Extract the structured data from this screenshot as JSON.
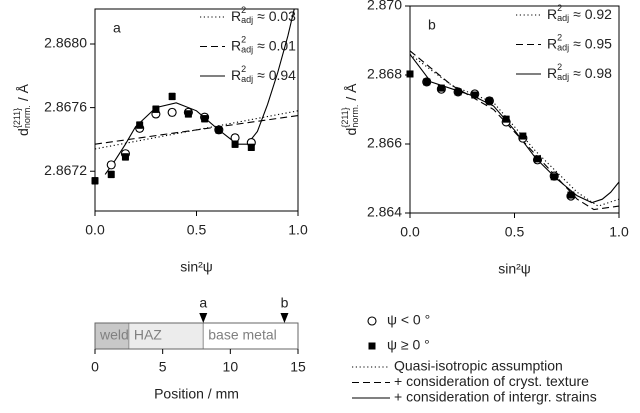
{
  "chart_data": [
    {
      "type": "scatter",
      "panel_label": "a",
      "xlabel": "sin²ψ",
      "ylabel": {
        "base": "d",
        "sup": "{211}",
        "sub": "norm.",
        "unit": "/ Å"
      },
      "r2_symbol": {
        "base": "R",
        "sup": "2",
        "sub": "adj"
      },
      "xlim": [
        0,
        1
      ],
      "xticks": [
        {
          "value": 0,
          "label": "0.0"
        },
        {
          "value": 0.5,
          "label": "0.5"
        },
        {
          "value": 1,
          "label": "1.0"
        }
      ],
      "ylim": [
        2.86695,
        2.86822
      ],
      "yticks": [
        2.8672,
        2.8676,
        {
          "value": 2.868,
          "label": "2.8680"
        }
      ],
      "series": [
        {
          "name": "ψ < 0 °",
          "marker": "circle",
          "color": "#000000",
          "x": [
            0.08,
            0.15,
            0.22,
            0.3,
            0.38,
            0.46,
            0.54,
            0.61,
            0.69,
            0.77
          ],
          "values": [
            2.86724,
            2.86731,
            2.86747,
            2.86756,
            2.86757,
            2.86757,
            2.86754,
            2.86746,
            2.86741,
            2.86738
          ],
          "errors": [
            2e-05,
            2e-05,
            2e-05,
            2e-05,
            2e-05,
            2e-05,
            2e-05,
            2e-05,
            2e-05,
            2e-05
          ]
        },
        {
          "name": "ψ ≥ 0 °",
          "marker": "square",
          "color": "#000000",
          "x": [
            0,
            0.08,
            0.15,
            0.22,
            0.3,
            0.38,
            0.46,
            0.54,
            0.61,
            0.69,
            0.77
          ],
          "values": [
            2.86714,
            2.86718,
            2.86729,
            2.86749,
            2.86759,
            2.86767,
            2.86756,
            2.86753,
            2.86746,
            2.86737,
            2.86735
          ],
          "errors": [
            2e-05,
            2e-05,
            2e-05,
            2e-05,
            2e-05,
            2e-05,
            2e-05,
            2e-05,
            2e-05,
            2e-05,
            2e-05
          ]
        }
      ],
      "fits": [
        {
          "name": "Quasi-isotropic assumption",
          "dash": "dotted",
          "r2_label": "≈ 0.03",
          "x": [
            0,
            1
          ],
          "values": [
            2.86734,
            2.86758
          ]
        },
        {
          "name": "+ consideration of cryst. texture",
          "dash": "dashed",
          "r2_label": "≈ 0.01",
          "x": [
            0,
            1
          ],
          "values": [
            2.86737,
            2.86755
          ]
        },
        {
          "name": "+ consideration of intergr. strains",
          "dash": "solid",
          "r2_label": "≈ 0.94",
          "x": [
            0.05,
            0.1,
            0.15,
            0.2,
            0.3,
            0.4,
            0.5,
            0.6,
            0.7,
            0.75,
            0.8,
            0.85,
            0.9,
            0.95,
            1
          ],
          "values": [
            2.86718,
            2.86727,
            2.86737,
            2.86748,
            2.8676,
            2.86763,
            2.86758,
            2.86747,
            2.86737,
            2.86737,
            2.86745,
            2.86762,
            2.86782,
            2.86805,
            2.86832
          ]
        }
      ]
    },
    {
      "type": "scatter",
      "panel_label": "b",
      "xlabel": "sin²ψ",
      "ylabel": {
        "base": "d",
        "sup": "{211}",
        "sub": "norm.",
        "unit": "/ Å"
      },
      "r2_symbol": {
        "base": "R",
        "sup": "2",
        "sub": "adj"
      },
      "xlim": [
        0,
        1
      ],
      "xticks": [
        {
          "value": 0,
          "label": "0.0"
        },
        {
          "value": 0.5,
          "label": "0.5"
        },
        {
          "value": 1,
          "label": "1.0"
        }
      ],
      "ylim": [
        2.864,
        2.87
      ],
      "yticks": [
        2.864,
        2.866,
        2.868,
        {
          "value": 2.87,
          "label": "2.870"
        }
      ],
      "series": [
        {
          "marker": "circle",
          "color": "#000000",
          "x": [
            0.08,
            0.15,
            0.23,
            0.31,
            0.38,
            0.46,
            0.54,
            0.61,
            0.69,
            0.77
          ],
          "values": [
            2.8678,
            2.86759,
            2.86751,
            2.86745,
            2.86725,
            2.86664,
            2.86617,
            2.86554,
            2.86507,
            2.86449
          ],
          "errors": [
            8e-05,
            8e-05,
            8e-05,
            8e-05,
            8e-05,
            8e-05,
            8e-05,
            8e-05,
            8e-05,
            8e-05
          ]
        },
        {
          "marker": "square",
          "color": "#000000",
          "x": [
            0,
            0.08,
            0.15,
            0.23,
            0.31,
            0.38,
            0.46,
            0.54,
            0.61,
            0.69,
            0.77
          ],
          "values": [
            2.86803,
            2.8678,
            2.86762,
            2.86751,
            2.86742,
            2.86725,
            2.86672,
            2.86623,
            2.86557,
            2.86505,
            2.86452
          ],
          "errors": [
            8e-05,
            8e-05,
            8e-05,
            8e-05,
            8e-05,
            8e-05,
            8e-05,
            8e-05,
            8e-05,
            8e-05,
            8e-05
          ]
        }
      ],
      "fits": [
        {
          "dash": "dotted",
          "r2_label": "≈ 0.92",
          "x": [
            0,
            0.2,
            0.4,
            0.6,
            0.8,
            0.9,
            1
          ],
          "values": [
            2.8686,
            2.8677,
            2.8672,
            2.8658,
            2.8646,
            2.8642,
            2.8644
          ]
        },
        {
          "dash": "dashed",
          "r2_label": "≈ 0.95",
          "x": [
            0,
            0.2,
            0.4,
            0.6,
            0.8,
            0.88,
            1
          ],
          "values": [
            2.8687,
            2.8677,
            2.867,
            2.8657,
            2.8644,
            2.8641,
            2.8642
          ]
        },
        {
          "dash": "solid",
          "r2_label": "≈ 0.98",
          "x": [
            0,
            0.1,
            0.2,
            0.3,
            0.4,
            0.5,
            0.6,
            0.7,
            0.8,
            0.87,
            0.92,
            0.96,
            1
          ],
          "values": [
            2.8686,
            2.8678,
            2.8676,
            2.8674,
            2.8671,
            2.8664,
            2.8656,
            2.865,
            2.8645,
            2.8643,
            2.8644,
            2.8646,
            2.8649
          ]
        }
      ]
    },
    {
      "type": "segments",
      "xlabel": "Position / mm",
      "xlim": [
        0,
        15
      ],
      "xticks": [
        0,
        5,
        10,
        15
      ],
      "label_color": "#808080",
      "segments": [
        {
          "name": "weld",
          "start": 0,
          "end": 2.5,
          "color": "#c8c8c8"
        },
        {
          "name": "HAZ",
          "start": 2.5,
          "end": 8,
          "color": "#ececec"
        },
        {
          "name": "base metal",
          "start": 8,
          "end": 15,
          "color": "#ffffff"
        }
      ],
      "markers": [
        {
          "label": "a",
          "x": 8
        },
        {
          "label": "b",
          "x": 14
        }
      ]
    }
  ]
}
